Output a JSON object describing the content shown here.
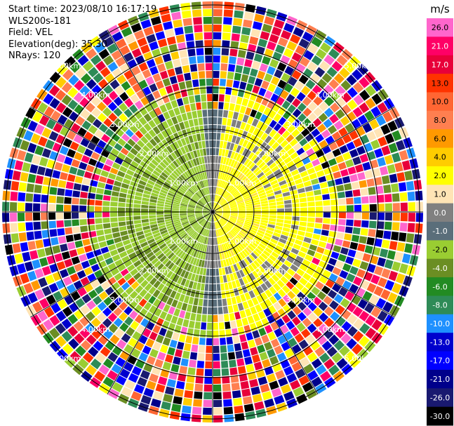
{
  "header": {
    "start_time": "Start time: 2023/08/10 16:17:19",
    "instrument": "WLS200s-181",
    "field": "Field: VEL",
    "elevation": "Elevation(deg): 35.30",
    "nrays": "NRays: 120"
  },
  "chart_data": {
    "type": "heatmap",
    "projection": "polar PPI scan",
    "n_rays": 120,
    "grid": true,
    "range_ring_labels": [
      "1.00km",
      "2.00km",
      "3.00km",
      "4.00km",
      "5.00km"
    ],
    "colorbar": {
      "unit": "m/s",
      "placement": "right",
      "ticks": [
        "26.0",
        "21.0",
        "17.0",
        "13.0",
        "10.0",
        "8.0",
        "6.0",
        "4.0",
        "2.0",
        "1.0",
        "0.0",
        "-1.0",
        "-2.0",
        "-4.0",
        "-6.0",
        "-8.0",
        "-10.0",
        "-13.0",
        "-17.0",
        "-21.0",
        "-26.0",
        "-30.0"
      ],
      "colors": [
        "#ff66cc",
        "#ff0066",
        "#e8003a",
        "#ff3300",
        "#ff6633",
        "#ff7f50",
        "#ff9900",
        "#ffcc00",
        "#ffff00",
        "#ffe4b5",
        "#808080",
        "#5a6e7a",
        "#9acd32",
        "#6b8e23",
        "#228b22",
        "#2e8b57",
        "#1e90ff",
        "#0000cd",
        "#0000ff",
        "#00008b",
        "#191970",
        "#000000"
      ]
    }
  }
}
